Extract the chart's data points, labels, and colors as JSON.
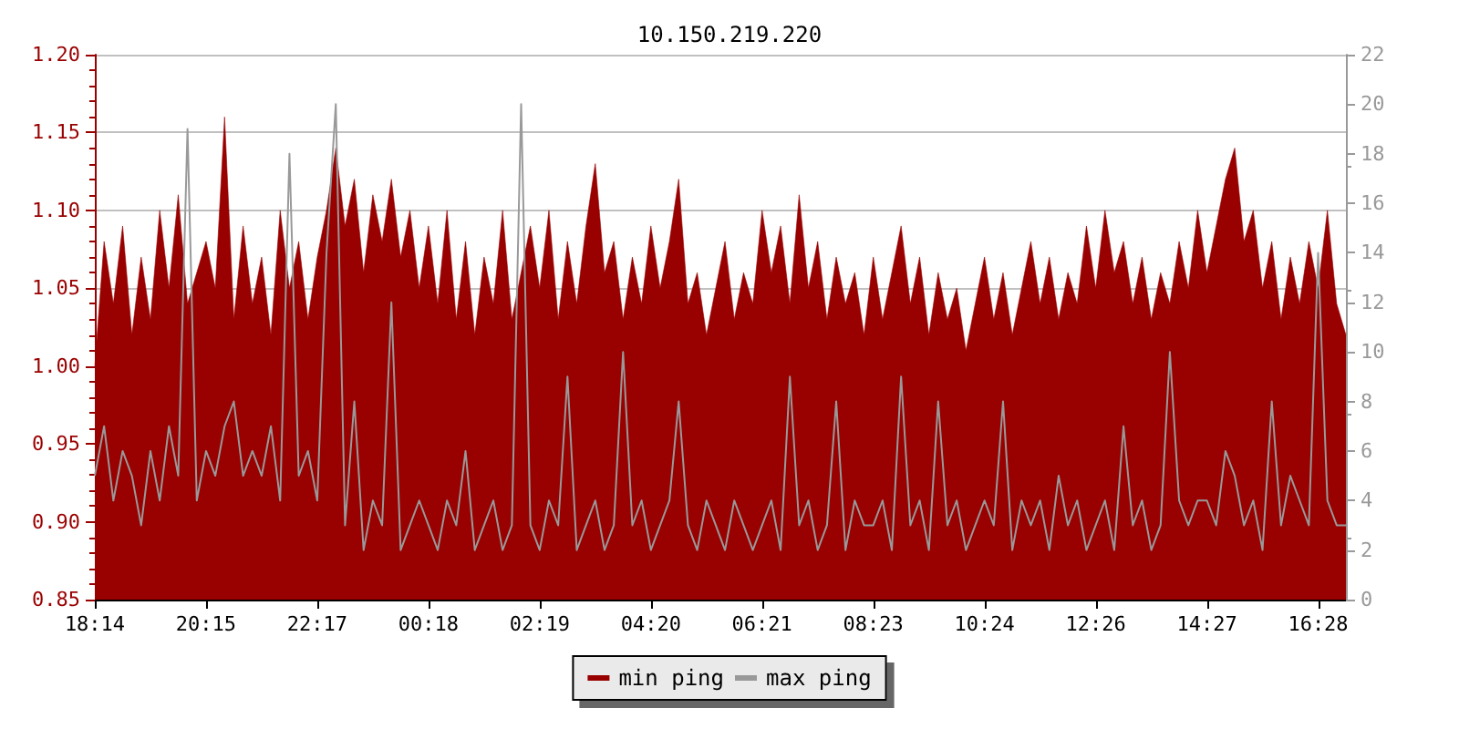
{
  "chart_data": {
    "type": "area",
    "title": "10.150.219.220",
    "categories": [
      "18:14",
      null,
      null,
      null,
      null,
      null,
      null,
      null,
      null,
      null,
      null,
      null,
      "20:15",
      null,
      null,
      null,
      null,
      null,
      null,
      null,
      null,
      null,
      null,
      null,
      "22:17",
      null,
      null,
      null,
      null,
      null,
      null,
      null,
      null,
      null,
      null,
      null,
      "00:18",
      null,
      null,
      null,
      null,
      null,
      null,
      null,
      null,
      null,
      null,
      null,
      "02:19",
      null,
      null,
      null,
      null,
      null,
      null,
      null,
      null,
      null,
      null,
      null,
      "04:20",
      null,
      null,
      null,
      null,
      null,
      null,
      null,
      null,
      null,
      null,
      null,
      "06:21",
      null,
      null,
      null,
      null,
      null,
      null,
      null,
      null,
      null,
      null,
      null,
      "08:23",
      null,
      null,
      null,
      null,
      null,
      null,
      null,
      null,
      null,
      null,
      null,
      "10:24",
      null,
      null,
      null,
      null,
      null,
      null,
      null,
      null,
      null,
      null,
      null,
      "12:26",
      null,
      null,
      null,
      null,
      null,
      null,
      null,
      null,
      null,
      null,
      null,
      "14:27",
      null,
      null,
      null,
      null,
      null,
      null,
      null,
      null,
      null,
      null,
      null,
      "16:28",
      null,
      null,
      null
    ],
    "series": [
      {
        "name": "min ping",
        "color": "#990000",
        "values": [
          1.0,
          1.08,
          1.04,
          1.09,
          1.02,
          1.07,
          1.03,
          1.1,
          1.05,
          1.11,
          1.04,
          1.06,
          1.08,
          1.05,
          1.16,
          1.03,
          1.09,
          1.04,
          1.07,
          1.02,
          1.1,
          1.05,
          1.08,
          1.03,
          1.07,
          1.1,
          1.14,
          1.09,
          1.12,
          1.06,
          1.11,
          1.08,
          1.12,
          1.07,
          1.1,
          1.05,
          1.09,
          1.04,
          1.1,
          1.03,
          1.08,
          1.02,
          1.07,
          1.04,
          1.1,
          1.03,
          1.06,
          1.09,
          1.05,
          1.1,
          1.03,
          1.08,
          1.04,
          1.09,
          1.13,
          1.06,
          1.08,
          1.03,
          1.07,
          1.04,
          1.09,
          1.05,
          1.08,
          1.12,
          1.04,
          1.06,
          1.02,
          1.05,
          1.08,
          1.03,
          1.06,
          1.04,
          1.1,
          1.06,
          1.09,
          1.04,
          1.11,
          1.05,
          1.08,
          1.03,
          1.07,
          1.04,
          1.06,
          1.02,
          1.07,
          1.03,
          1.06,
          1.09,
          1.04,
          1.07,
          1.02,
          1.06,
          1.03,
          1.05,
          1.01,
          1.04,
          1.07,
          1.03,
          1.06,
          1.02,
          1.05,
          1.08,
          1.04,
          1.07,
          1.03,
          1.06,
          1.04,
          1.09,
          1.05,
          1.1,
          1.06,
          1.08,
          1.04,
          1.07,
          1.03,
          1.06,
          1.04,
          1.08,
          1.05,
          1.1,
          1.06,
          1.09,
          1.12,
          1.14,
          1.08,
          1.1,
          1.05,
          1.08,
          1.03,
          1.07,
          1.04,
          1.08,
          1.05,
          1.1,
          1.04,
          1.02
        ]
      },
      {
        "name": "max ping",
        "type": "line",
        "axis": "y2",
        "color": "#999999",
        "values": [
          5,
          7,
          4,
          6,
          5,
          3,
          6,
          4,
          7,
          5,
          19,
          4,
          6,
          5,
          7,
          8,
          5,
          6,
          5,
          7,
          4,
          18,
          5,
          6,
          4,
          14,
          20,
          3,
          8,
          2,
          4,
          3,
          12,
          2,
          3,
          4,
          3,
          2,
          4,
          3,
          6,
          2,
          3,
          4,
          2,
          3,
          20,
          3,
          2,
          4,
          3,
          9,
          2,
          3,
          4,
          2,
          3,
          10,
          3,
          4,
          2,
          3,
          4,
          8,
          3,
          2,
          4,
          3,
          2,
          4,
          3,
          2,
          3,
          4,
          2,
          9,
          3,
          4,
          2,
          3,
          8,
          2,
          4,
          3,
          3,
          4,
          2,
          9,
          3,
          4,
          2,
          8,
          3,
          4,
          2,
          3,
          4,
          3,
          8,
          2,
          4,
          3,
          4,
          2,
          5,
          3,
          4,
          2,
          3,
          4,
          2,
          7,
          3,
          4,
          2,
          3,
          10,
          4,
          3,
          4,
          4,
          3,
          6,
          5,
          3,
          4,
          2,
          8,
          3,
          5,
          4,
          3,
          14,
          4,
          3,
          3
        ]
      }
    ],
    "ylim": [
      0.85,
      1.2
    ],
    "yticks": [
      0.85,
      {
        "value": 0.9,
        "label": "0.90"
      },
      0.95,
      {
        "value": 1.0,
        "label": "1.00"
      },
      1.05,
      {
        "value": 1.1,
        "label": "1.10"
      },
      1.15,
      {
        "value": 1.2,
        "label": "1.20"
      }
    ],
    "y2lim": [
      0,
      22
    ],
    "y2ticks": [
      0,
      2,
      4,
      6,
      8,
      10,
      12,
      14,
      16,
      18,
      20,
      22
    ],
    "grid": "y",
    "legend": "bottom",
    "marker": "none",
    "line_style": "solid"
  }
}
